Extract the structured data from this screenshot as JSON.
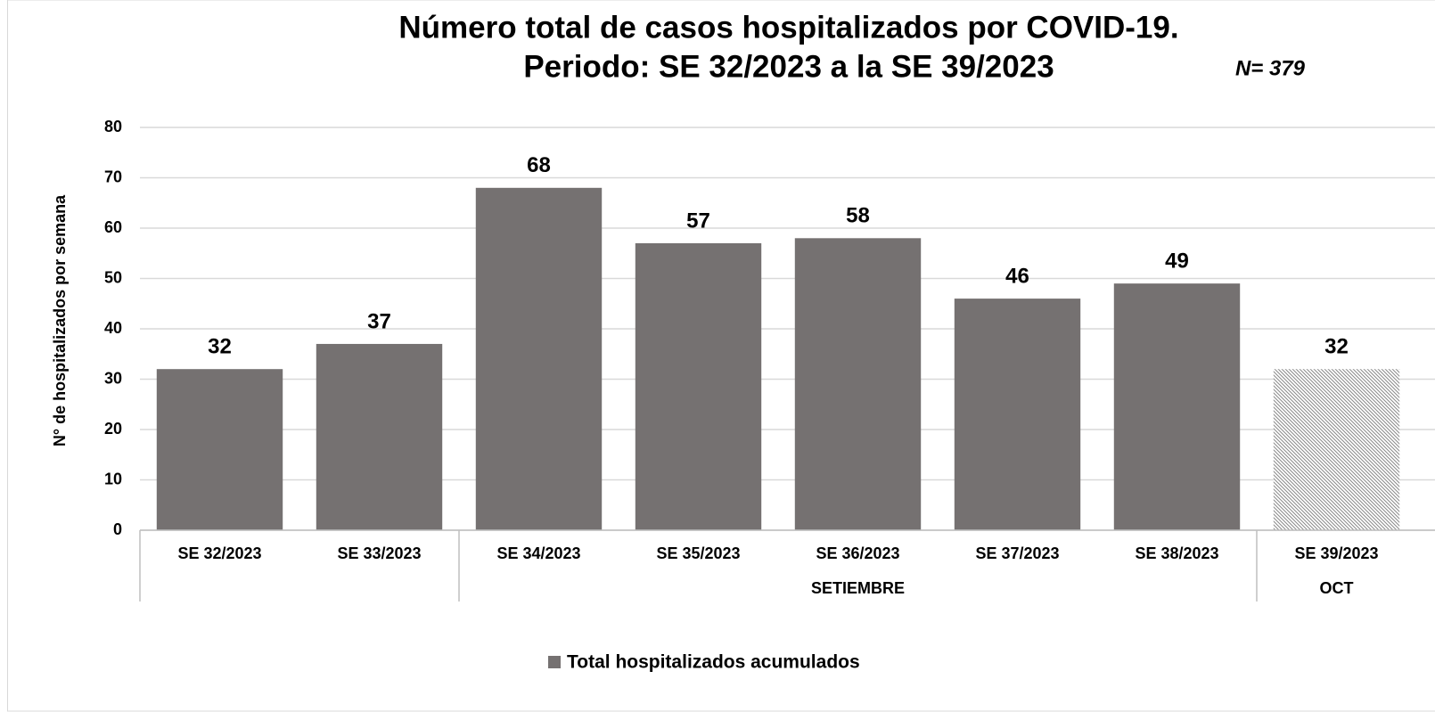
{
  "chart_data": {
    "type": "bar",
    "title": [
      "Número total de casos hospitalizados por COVID-19.",
      "Periodo:  SE 32/2023 a la SE 39/2023"
    ],
    "annotation": "N= 379",
    "y_label": "N° de hospitalizados por semana",
    "categories": [
      "SE 32/2023",
      "SE 33/2023",
      "SE 34/2023",
      "SE 35/2023",
      "SE 36/2023",
      "SE 37/2023",
      "SE 38/2023",
      "SE 39/2023"
    ],
    "groups": [
      {
        "label": null,
        "count": 2
      },
      {
        "label": "SETIEMBRE",
        "count": 5
      },
      {
        "label": "OCT",
        "count": 1
      }
    ],
    "series": [
      {
        "name": "Total hospitalizados acumulados",
        "color": "#757171",
        "values": [
          32,
          37,
          68,
          57,
          58,
          46,
          49,
          32
        ],
        "styles": [
          "solid",
          "solid",
          "solid",
          "solid",
          "solid",
          "solid",
          "solid",
          "hatched"
        ]
      }
    ],
    "ylim": [
      0,
      80
    ],
    "yticks": [
      0,
      10,
      20,
      30,
      40,
      50,
      60,
      70,
      80
    ],
    "grid": true,
    "legend": "bottom"
  }
}
